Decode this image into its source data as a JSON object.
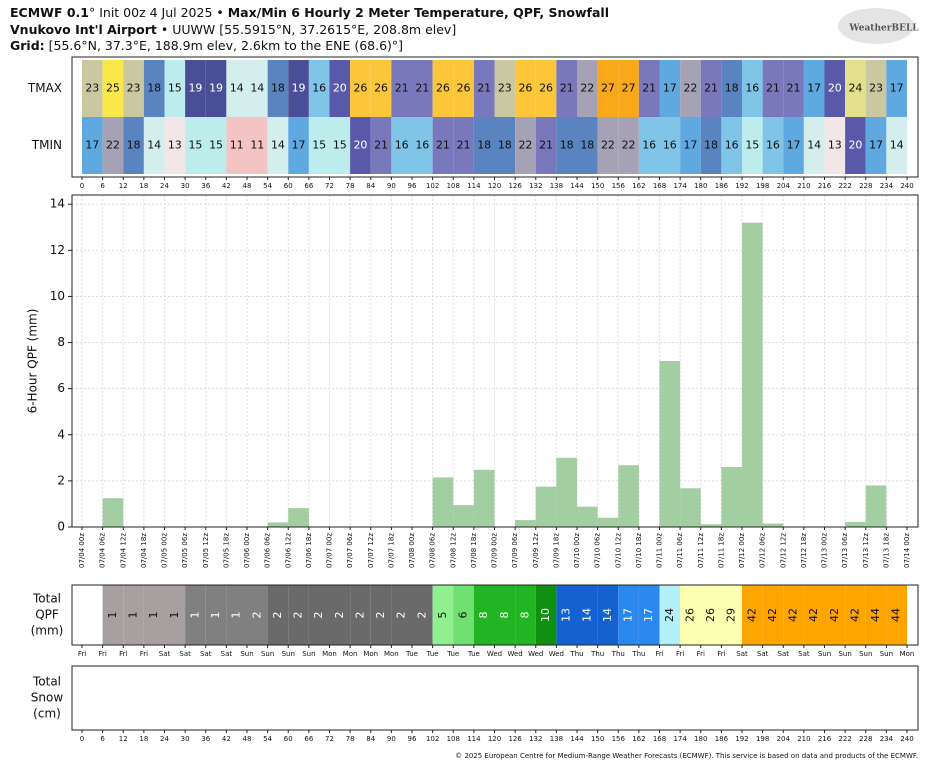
{
  "header": {
    "line1": [
      "ECMWF 0.1",
      "°",
      " Init 00z 4 Jul 2025 • ",
      "Max/Min 6 Hourly 2 Meter Temperature,  QPF,  Snowfall"
    ],
    "line2": [
      "Vnukovo Int'l Airport",
      " • UUWW [55.5915°N, 37.2615°E, 208.8m elev]"
    ],
    "line3": [
      "Grid:",
      " [55.6°N, 37.3°E, 188.9m elev, 2.6km to the ENE (68.6)°]"
    ],
    "logo": "WeatherBELL",
    "footer": "© 2025 European Centre for Medium-Range Weather Forecasts (ECMWF). This service is based on data and products of the ECMWF."
  },
  "chart_data": [
    {
      "type": "heatmap",
      "rows": [
        "TMAX",
        "TMIN"
      ],
      "x": [
        0,
        6,
        12,
        18,
        24,
        30,
        36,
        42,
        48,
        54,
        60,
        66,
        72,
        78,
        84,
        90,
        96,
        102,
        108,
        114,
        120,
        126,
        132,
        138,
        144,
        150,
        156,
        162,
        168,
        174,
        180,
        186,
        192,
        198,
        204,
        210,
        216,
        222,
        228,
        234
      ],
      "values": [
        [
          23,
          25,
          23,
          18,
          15,
          19,
          19,
          14,
          14,
          18,
          19,
          16,
          20,
          26,
          26,
          21,
          21,
          26,
          26,
          21,
          23,
          26,
          26,
          21,
          22,
          27,
          27,
          21,
          17,
          22,
          21,
          18,
          16,
          21,
          21,
          17,
          20,
          24,
          23,
          17
        ],
        [
          17,
          22,
          18,
          14,
          13,
          15,
          15,
          11,
          11,
          14,
          17,
          15,
          15,
          20,
          21,
          16,
          16,
          21,
          21,
          18,
          18,
          22,
          21,
          18,
          18,
          22,
          22,
          16,
          16,
          17,
          18,
          16,
          15,
          16,
          17,
          14,
          13,
          20,
          17,
          14
        ]
      ],
      "colors": {
        "11": "#f4c4c4",
        "13": "#f2e6e6",
        "14": "#d4eeee",
        "15": "#bcecec",
        "16": "#80c4e8",
        "17": "#60a8e0",
        "18": "#5a84c0",
        "19": "#4a4e96",
        "20": "#5a58a8",
        "21": "#7a78bc",
        "22": "#a4a2b4",
        "23": "#cac8a0",
        "24": "#e2e08c",
        "25": "#f8e84a",
        "26": "#fcc63a",
        "27": "#f8a818"
      },
      "xlim": [
        0,
        240
      ],
      "xticks": [
        0,
        6,
        12,
        18,
        24,
        30,
        36,
        42,
        48,
        54,
        60,
        66,
        72,
        78,
        84,
        90,
        96,
        102,
        108,
        114,
        120,
        126,
        132,
        138,
        144,
        150,
        156,
        162,
        168,
        174,
        180,
        186,
        192,
        198,
        204,
        210,
        216,
        222,
        228,
        234,
        240
      ]
    },
    {
      "type": "bar",
      "ylabel": "6-Hour QPF (mm)",
      "color": "#a2cea2",
      "grid": true,
      "x": [
        0,
        6,
        12,
        18,
        24,
        30,
        36,
        42,
        48,
        54,
        60,
        66,
        72,
        78,
        84,
        90,
        96,
        102,
        108,
        114,
        120,
        126,
        132,
        138,
        144,
        150,
        156,
        162,
        168,
        174,
        180,
        186,
        192,
        198,
        204,
        210,
        216,
        222,
        228,
        234
      ],
      "values": [
        0,
        1.25,
        0,
        0,
        0,
        0.02,
        0,
        0,
        0,
        0.2,
        0.82,
        0,
        0,
        0,
        0,
        0,
        0,
        2.15,
        0.95,
        2.48,
        0,
        0.3,
        1.75,
        3.0,
        0.88,
        0.4,
        2.68,
        0,
        7.2,
        1.68,
        0.12,
        2.6,
        13.2,
        0.15,
        0,
        0,
        0,
        0.22,
        1.8,
        0
      ],
      "xlim": [
        0,
        240
      ],
      "ylim": [
        0,
        14.4
      ],
      "yticks": [
        0,
        2,
        4,
        6,
        8,
        10,
        12,
        14
      ],
      "xticks": [
        {
          "value": 0,
          "label": "07/04 00z"
        },
        {
          "value": 6,
          "label": "07/04 06z"
        },
        {
          "value": 12,
          "label": "07/04 12z"
        },
        {
          "value": 18,
          "label": "07/04 18z"
        },
        {
          "value": 24,
          "label": "07/05 00z"
        },
        {
          "value": 30,
          "label": "07/05 06z"
        },
        {
          "value": 36,
          "label": "07/05 12z"
        },
        {
          "value": 42,
          "label": "07/05 18z"
        },
        {
          "value": 48,
          "label": "07/06 00z"
        },
        {
          "value": 54,
          "label": "07/06 06z"
        },
        {
          "value": 60,
          "label": "07/06 12z"
        },
        {
          "value": 66,
          "label": "07/06 18z"
        },
        {
          "value": 72,
          "label": "07/07 00z"
        },
        {
          "value": 78,
          "label": "07/07 06z"
        },
        {
          "value": 84,
          "label": "07/07 12z"
        },
        {
          "value": 90,
          "label": "07/07 18z"
        },
        {
          "value": 96,
          "label": "07/08 00z"
        },
        {
          "value": 102,
          "label": "07/08 06z"
        },
        {
          "value": 108,
          "label": "07/08 12z"
        },
        {
          "value": 114,
          "label": "07/08 18z"
        },
        {
          "value": 120,
          "label": "07/09 00z"
        },
        {
          "value": 126,
          "label": "07/09 06z"
        },
        {
          "value": 132,
          "label": "07/09 12z"
        },
        {
          "value": 138,
          "label": "07/09 18z"
        },
        {
          "value": 144,
          "label": "07/10 00z"
        },
        {
          "value": 150,
          "label": "07/10 06z"
        },
        {
          "value": 156,
          "label": "07/10 12z"
        },
        {
          "value": 162,
          "label": "07/10 18z"
        },
        {
          "value": 168,
          "label": "07/11 00z"
        },
        {
          "value": 174,
          "label": "07/11 06z"
        },
        {
          "value": 180,
          "label": "07/11 12z"
        },
        {
          "value": 186,
          "label": "07/11 18z"
        },
        {
          "value": 192,
          "label": "07/12 00z"
        },
        {
          "value": 198,
          "label": "07/12 06z"
        },
        {
          "value": 204,
          "label": "07/12 12z"
        },
        {
          "value": 210,
          "label": "07/12 18z"
        },
        {
          "value": 216,
          "label": "07/13 00z"
        },
        {
          "value": 222,
          "label": "07/13 06z"
        },
        {
          "value": 228,
          "label": "07/13 12z"
        },
        {
          "value": 234,
          "label": "07/13 18z"
        },
        {
          "value": 240,
          "label": "07/14 00z"
        }
      ]
    },
    {
      "type": "strip",
      "label": [
        "Total",
        "QPF",
        "(mm)"
      ],
      "x": [
        0,
        6,
        12,
        18,
        24,
        30,
        36,
        42,
        48,
        54,
        60,
        66,
        72,
        78,
        84,
        90,
        96,
        102,
        108,
        114,
        120,
        126,
        132,
        138,
        144,
        150,
        156,
        162,
        168,
        174,
        180,
        186,
        192,
        198,
        204,
        210,
        216,
        222,
        228,
        234
      ],
      "values": [
        null,
        1,
        1,
        1,
        1,
        1,
        1,
        1,
        2,
        2,
        2,
        2,
        2,
        2,
        2,
        2,
        2,
        5,
        6,
        8,
        8,
        8,
        10,
        13,
        14,
        14,
        17,
        17,
        24,
        26,
        26,
        29,
        42,
        42,
        42,
        42,
        42,
        42,
        44,
        44
      ],
      "colors": [
        null,
        "#a8a0a0",
        "#a8a0a0",
        "#a8a0a0",
        "#a8a0a0",
        "#808080",
        "#808080",
        "#808080",
        "#808080",
        "#6a6a6a",
        "#6a6a6a",
        "#6a6a6a",
        "#6a6a6a",
        "#6a6a6a",
        "#6a6a6a",
        "#6a6a6a",
        "#6a6a6a",
        "#90f090",
        "#70e070",
        "#22b422",
        "#22b422",
        "#22b422",
        "#109010",
        "#1462d2",
        "#1462d2",
        "#1462d2",
        "#2a88ee",
        "#2a88ee",
        "#b4f0f8",
        "#fefeb0",
        "#fefeb0",
        "#fefeb0",
        "#ffa500",
        "#ffa500",
        "#ffa500",
        "#ffa500",
        "#ffa500",
        "#ffa500",
        "#ffa500",
        "#ffa500"
      ],
      "xlim": [
        0,
        240
      ],
      "xticks": [
        {
          "value": 0,
          "label": "Fri"
        },
        {
          "value": 6,
          "label": "Fri"
        },
        {
          "value": 12,
          "label": "Fri"
        },
        {
          "value": 18,
          "label": "Fri"
        },
        {
          "value": 24,
          "label": "Sat"
        },
        {
          "value": 30,
          "label": "Sat"
        },
        {
          "value": 36,
          "label": "Sat"
        },
        {
          "value": 42,
          "label": "Sat"
        },
        {
          "value": 48,
          "label": "Sun"
        },
        {
          "value": 54,
          "label": "Sun"
        },
        {
          "value": 60,
          "label": "Sun"
        },
        {
          "value": 66,
          "label": "Sun"
        },
        {
          "value": 72,
          "label": "Mon"
        },
        {
          "value": 78,
          "label": "Mon"
        },
        {
          "value": 84,
          "label": "Mon"
        },
        {
          "value": 90,
          "label": "Mon"
        },
        {
          "value": 96,
          "label": "Tue"
        },
        {
          "value": 102,
          "label": "Tue"
        },
        {
          "value": 108,
          "label": "Tue"
        },
        {
          "value": 114,
          "label": "Tue"
        },
        {
          "value": 120,
          "label": "Wed"
        },
        {
          "value": 126,
          "label": "Wed"
        },
        {
          "value": 132,
          "label": "Wed"
        },
        {
          "value": 138,
          "label": "Wed"
        },
        {
          "value": 144,
          "label": "Thu"
        },
        {
          "value": 150,
          "label": "Thu"
        },
        {
          "value": 156,
          "label": "Thu"
        },
        {
          "value": 162,
          "label": "Thu"
        },
        {
          "value": 168,
          "label": "Fri"
        },
        {
          "value": 174,
          "label": "Fri"
        },
        {
          "value": 180,
          "label": "Fri"
        },
        {
          "value": 186,
          "label": "Fri"
        },
        {
          "value": 192,
          "label": "Sat"
        },
        {
          "value": 198,
          "label": "Sat"
        },
        {
          "value": 204,
          "label": "Sat"
        },
        {
          "value": 210,
          "label": "Sat"
        },
        {
          "value": 216,
          "label": "Sun"
        },
        {
          "value": 222,
          "label": "Sun"
        },
        {
          "value": 228,
          "label": "Sun"
        },
        {
          "value": 234,
          "label": "Sun"
        },
        {
          "value": 240,
          "label": "Mon"
        }
      ]
    },
    {
      "type": "strip",
      "label": [
        "Total",
        "Snow",
        "(cm)"
      ],
      "x": [],
      "values": [],
      "colors": [],
      "xlim": [
        0,
        240
      ],
      "xticks": [
        0,
        6,
        12,
        18,
        24,
        30,
        36,
        42,
        48,
        54,
        60,
        66,
        72,
        78,
        84,
        90,
        96,
        102,
        108,
        114,
        120,
        126,
        132,
        138,
        144,
        150,
        156,
        162,
        168,
        174,
        180,
        186,
        192,
        198,
        204,
        210,
        216,
        222,
        228,
        234,
        240
      ]
    }
  ]
}
